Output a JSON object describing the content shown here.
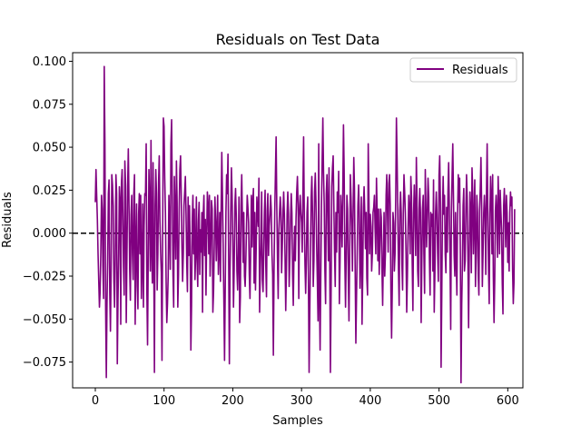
{
  "chart_data": {
    "type": "line",
    "title": "Residuals on Test Data",
    "xlabel": "Samples",
    "ylabel": "Residuals",
    "xlim": [
      -33,
      622
    ],
    "ylim": [
      -0.09,
      0.105
    ],
    "xticks": [
      0,
      100,
      200,
      300,
      400,
      500,
      600
    ],
    "xtick_labels": [
      "0",
      "100",
      "200",
      "300",
      "400",
      "500",
      "600"
    ],
    "yticks": [
      -0.075,
      -0.05,
      -0.025,
      0.0,
      0.025,
      0.05,
      0.075,
      0.1
    ],
    "ytick_labels": [
      "−0.075",
      "−0.050",
      "−0.025",
      "0.000",
      "0.025",
      "0.050",
      "0.075",
      "0.100"
    ],
    "grid": false,
    "legend_position": "upper right",
    "zero_line": {
      "y": 0.0,
      "style": "dashed",
      "color": "#000000"
    },
    "series": [
      {
        "name": "Residuals",
        "color": "#800080",
        "x_start": 0,
        "x_step": 1,
        "values": [
          0.018,
          0.037,
          0.022,
          0.008,
          -0.012,
          -0.028,
          -0.043,
          -0.034,
          -0.011,
          0.022,
          0.014,
          -0.019,
          -0.038,
          0.097,
          0.052,
          -0.042,
          -0.084,
          -0.041,
          -0.016,
          0.023,
          0.031,
          -0.034,
          -0.057,
          -0.021,
          0.034,
          0.028,
          0.016,
          -0.028,
          -0.043,
          -0.016,
          0.034,
          0.023,
          -0.076,
          -0.039,
          -0.012,
          0.027,
          0.019,
          -0.053,
          0.029,
          0.037,
          0.012,
          -0.019,
          -0.036,
          0.042,
          0.028,
          -0.052,
          -0.014,
          0.026,
          0.049,
          0.018,
          -0.021,
          -0.039,
          0.011,
          0.022,
          -0.012,
          -0.027,
          0.023,
          0.034,
          -0.053,
          -0.008,
          0.017,
          -0.031,
          -0.044,
          0.011,
          0.023,
          -0.012,
          0.022,
          -0.038,
          -0.018,
          0.017,
          -0.043,
          0.004,
          0.023,
          0.022,
          0.052,
          -0.034,
          -0.065,
          -0.012,
          0.037,
          0.017,
          -0.022,
          0.054,
          -0.009,
          -0.029,
          0.041,
          -0.012,
          -0.081,
          0.016,
          0.037,
          0.023,
          -0.033,
          -0.012,
          0.029,
          0.045,
          0.007,
          -0.011,
          -0.023,
          -0.074,
          0.003,
          0.067,
          0.062,
          0.032,
          0.012,
          -0.028,
          -0.052,
          -0.041,
          -0.025,
          0.022,
          0.004,
          -0.021,
          0.052,
          0.066,
          0.021,
          -0.024,
          -0.043,
          0.033,
          0.012,
          -0.015,
          0.042,
          0.018,
          -0.043,
          -0.024,
          0.014,
          0.037,
          0.045,
          0.022,
          -0.008,
          -0.028,
          -0.012,
          0.016,
          0.024,
          0.033,
          0.011,
          -0.017,
          -0.034,
          0.021,
          -0.013,
          0.016,
          -0.008,
          -0.068,
          -0.042,
          0.007,
          0.022,
          -0.012,
          0.014,
          -0.027,
          -0.012,
          0.021,
          -0.015,
          -0.031,
          0.007,
          0.018,
          -0.024,
          0.002,
          -0.011,
          0.012,
          -0.046,
          0.011,
          0.022,
          -0.013,
          0.008,
          -0.036,
          -0.002,
          0.024,
          0.016,
          -0.012,
          0.022,
          -0.025,
          -0.006,
          0.019,
          0.014,
          -0.046,
          -0.034,
          -0.009,
          0.021,
          0.007,
          -0.016,
          0.004,
          0.022,
          -0.024,
          -0.009,
          0.012,
          -0.028,
          0.013,
          0.047,
          0.022,
          -0.008,
          -0.039,
          -0.074,
          -0.033,
          0.012,
          0.034,
          0.023,
          0.046,
          -0.017,
          -0.076,
          -0.022,
          0.012,
          0.038,
          0.022,
          -0.005,
          -0.043,
          -0.021,
          0.016,
          0.026,
          0.011,
          -0.022,
          -0.033,
          -0.012,
          0.021,
          -0.052,
          -0.037,
          0.016,
          0.034,
          0.009,
          -0.017,
          0.012,
          -0.025,
          -0.031,
          -0.016,
          0.005,
          0.022,
          0.015,
          0.006,
          -0.024,
          -0.038,
          -0.011,
          0.022,
          -0.008,
          0.018,
          0.026,
          -0.029,
          0.012,
          -0.033,
          -0.009,
          0.021,
          0.012,
          0.004,
          0.032,
          -0.046,
          -0.022,
          -0.006,
          0.024,
          -0.027,
          -0.034,
          -0.011,
          0.012,
          0.025,
          -0.019,
          -0.037,
          0.013,
          0.023,
          -0.013,
          0.004,
          0.011,
          0.022,
          0.013,
          -0.012,
          -0.024,
          -0.071,
          -0.022,
          0.012,
          0.034,
          0.056,
          0.016,
          -0.014,
          -0.038,
          0.002,
          0.012,
          0.021,
          0.014,
          -0.023,
          -0.008,
          0.012,
          0.024,
          0.011,
          -0.014,
          -0.045,
          -0.021,
          0.011,
          0.024,
          0.012,
          -0.031,
          -0.014,
          0.007,
          0.023,
          0.012,
          -0.024,
          -0.042,
          -0.011,
          0.004,
          -0.016,
          0.009,
          0.024,
          0.033,
          0.017,
          -0.038,
          0.012,
          0.022,
          0.012,
          0.006,
          -0.011,
          0.024,
          0.056,
          0.011,
          -0.018,
          -0.035,
          -0.016,
          0.012,
          0.021,
          -0.026,
          -0.081,
          -0.045,
          -0.012,
          0.021,
          0.033,
          0.012,
          -0.031,
          -0.016,
          0.024,
          0.035,
          0.018,
          -0.008,
          -0.028,
          -0.051,
          0.052,
          -0.036,
          -0.068,
          -0.025,
          0.016,
          0.042,
          0.067,
          0.035,
          0.016,
          -0.022,
          -0.041,
          0.023,
          0.034,
          0.012,
          -0.016,
          0.038,
          -0.016,
          -0.081,
          -0.034,
          0.027,
          0.038,
          0.045,
          0.016,
          -0.011,
          -0.031,
          0.012,
          -0.011,
          0.024,
          0.012,
          0.036,
          -0.041,
          -0.017,
          0.022,
          0.011,
          -0.008,
          0.024,
          0.063,
          0.036,
          -0.016,
          -0.043,
          -0.012,
          0.022,
          0.014,
          -0.025,
          -0.051,
          -0.012,
          0.034,
          0.021,
          0.004,
          -0.022,
          0.012,
          0.044,
          0.026,
          -0.021,
          -0.064,
          -0.036,
          -0.011,
          0.016,
          0.028,
          0.012,
          -0.032,
          -0.012,
          0.021,
          -0.053,
          -0.025,
          0.015,
          0.027,
          0.012,
          -0.009,
          0.012,
          -0.026,
          -0.036,
          0.052,
          0.021,
          -0.012,
          0.011,
          0.004,
          -0.022,
          -0.012,
          0.012,
          0.015,
          0.022,
          0.003,
          -0.012,
          0.032,
          0.012,
          -0.016,
          0.014,
          -0.024,
          -0.006,
          0.014,
          0.009,
          -0.021,
          -0.042,
          -0.013,
          0.012,
          -0.025,
          -0.012,
          0.022,
          0.034,
          0.012,
          -0.011,
          0.029,
          0.034,
          0.016,
          -0.034,
          -0.061,
          -0.032,
          0.012,
          0.006,
          -0.022,
          -0.012,
          0.021,
          0.067,
          0.043,
          0.012,
          -0.021,
          -0.042,
          0.013,
          0.024,
          0.012,
          -0.018,
          -0.033,
          0.011,
          0.034,
          0.024,
          0.012,
          -0.012,
          -0.046,
          -0.025,
          0.004,
          0.022,
          0.013,
          -0.012,
          0.033,
          0.021,
          -0.017,
          -0.045,
          0.012,
          0.028,
          0.011,
          -0.013,
          0.044,
          0.018,
          -0.022,
          -0.031,
          0.014,
          0.026,
          0.012,
          -0.052,
          -0.016,
          0.014,
          0.022,
          -0.012,
          -0.035,
          0.037,
          0.012,
          -0.008,
          0.012,
          0.032,
          0.021,
          -0.014,
          -0.036,
          0.012,
          0.004,
          0.011,
          -0.022,
          0.031,
          -0.046,
          -0.023,
          0.012,
          0.024,
          0.011,
          -0.012,
          -0.028,
          0.034,
          0.045,
          0.018,
          -0.078,
          -0.036,
          0.012,
          0.033,
          0.011,
          0.022,
          -0.012,
          -0.023,
          0.015,
          -0.011,
          0.024,
          0.041,
          0.015,
          -0.016,
          -0.056,
          0.012,
          0.033,
          0.052,
          0.021,
          -0.013,
          -0.025,
          0.012,
          -0.016,
          -0.036,
          0.011,
          0.034,
          0.018,
          0.032,
          -0.012,
          -0.087,
          -0.042,
          -0.018,
          0.016,
          0.026,
          -0.022,
          -0.016,
          0.012,
          0.034,
          0.021,
          -0.013,
          -0.055,
          -0.012,
          0.024,
          0.012,
          -0.023,
          0.038,
          0.024,
          -0.012,
          0.008,
          0.031,
          -0.031,
          -0.013,
          0.022,
          0.012,
          -0.024,
          -0.036,
          0.013,
          0.026,
          0.044,
          0.016,
          -0.031,
          -0.012,
          0.012,
          0.022,
          0.011,
          -0.024,
          0.023,
          0.052,
          0.012,
          -0.021,
          -0.041,
          0.011,
          0.033,
          0.021,
          -0.012,
          0.034,
          -0.025,
          -0.052,
          -0.028,
          0.013,
          0.022,
          0.011,
          -0.014,
          0.033,
          0.015,
          -0.012,
          0.025,
          0.013,
          0.002,
          -0.029,
          -0.047,
          0.016,
          0.026,
          0.012,
          -0.008,
          0.022,
          0.012,
          -0.017,
          0.006,
          -0.022,
          0.012,
          0.024,
          0.016,
          0.021,
          -0.021,
          -0.041,
          -0.029,
          0.014
        ]
      }
    ]
  }
}
